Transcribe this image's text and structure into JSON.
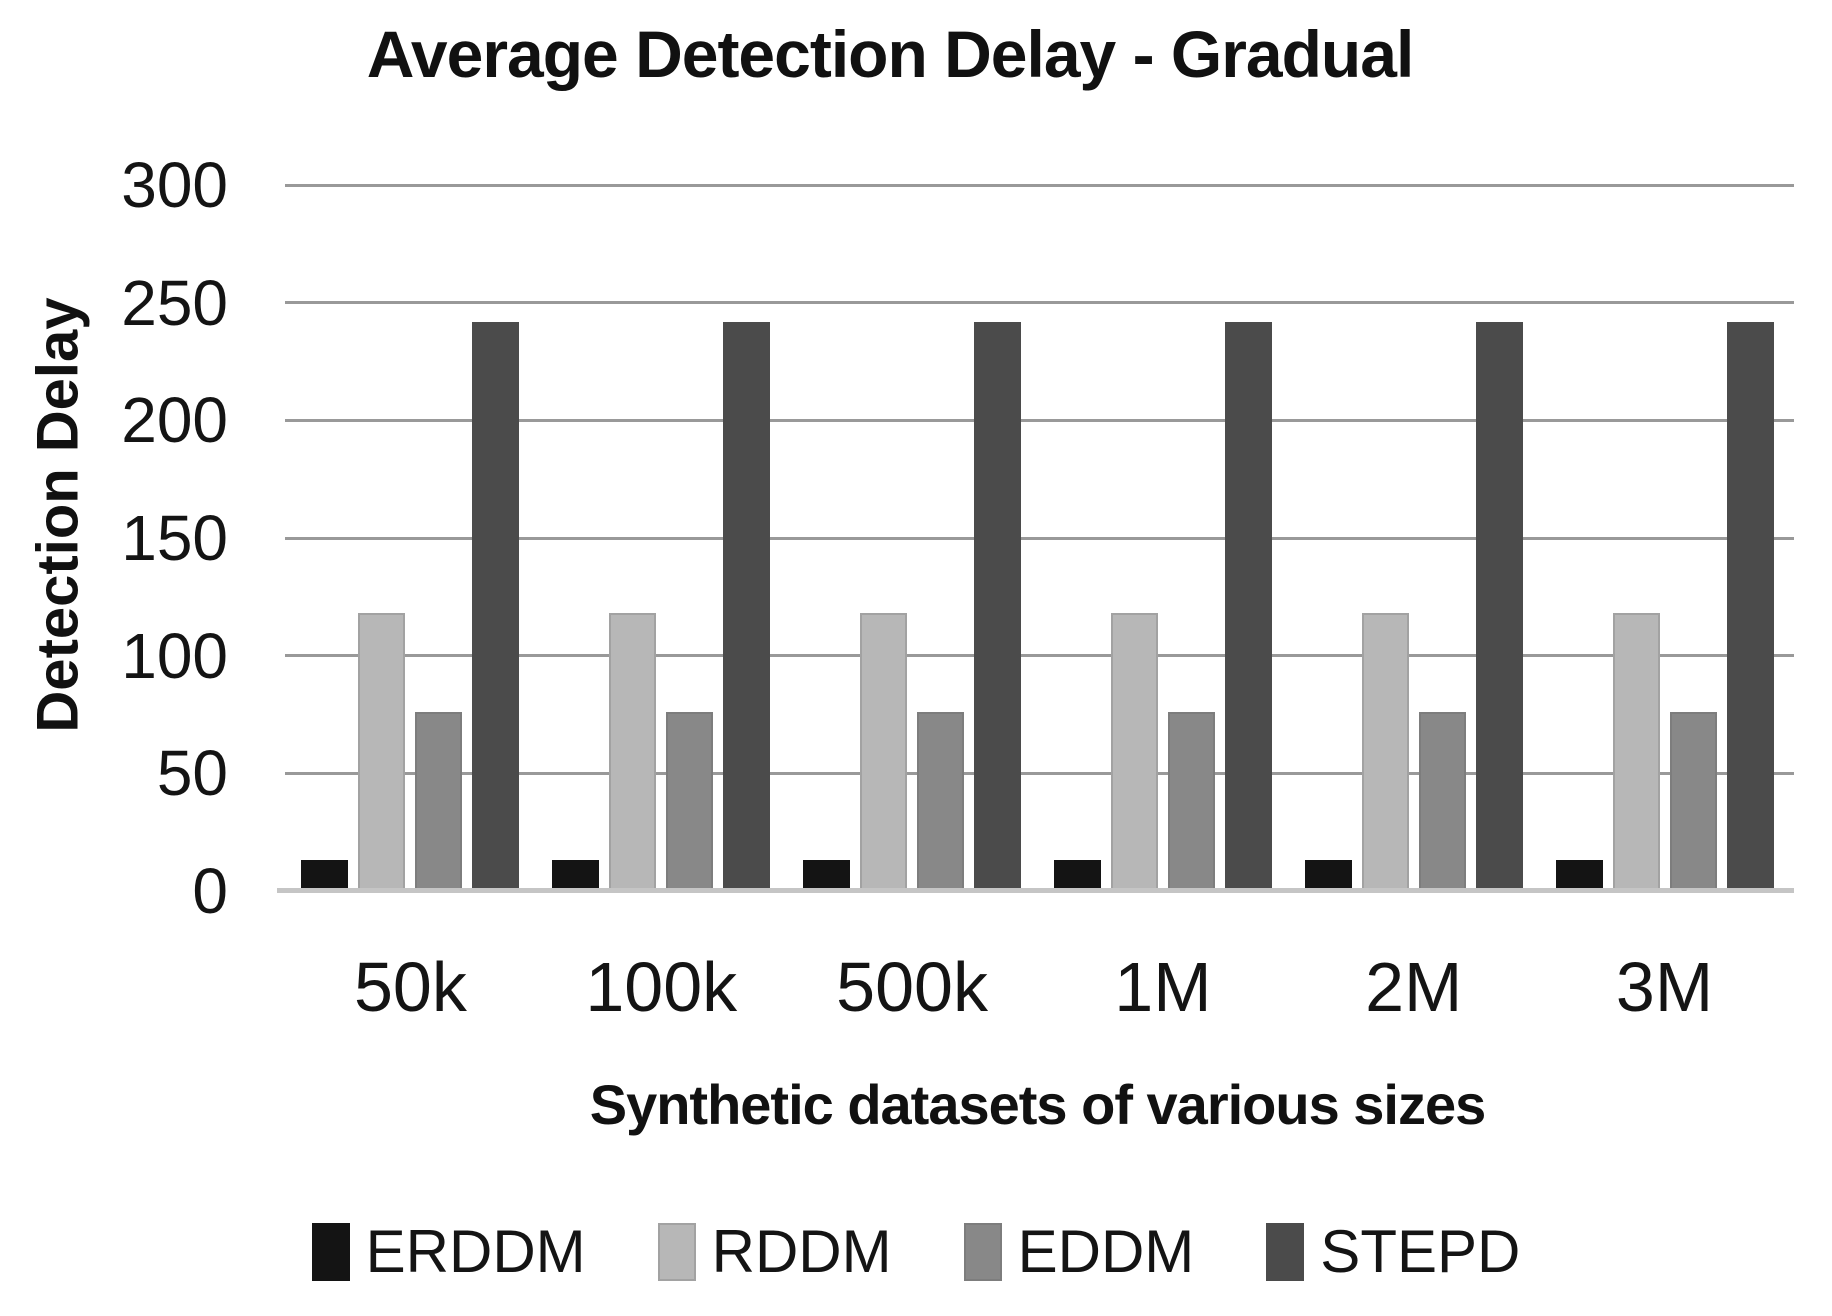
{
  "figure": {
    "background": "#ffffff",
    "text_color": "#141414"
  },
  "chart_data": {
    "type": "bar",
    "title": "Average Detection Delay - Gradual",
    "xlabel": "Synthetic datasets of various sizes",
    "ylabel": "Detection Delay",
    "categories": [
      "50k",
      "100k",
      "500k",
      "1M",
      "2M",
      "3M"
    ],
    "series": [
      {
        "name": "ERDDM",
        "color": "#141414",
        "border_color": "",
        "values": [
          13,
          13,
          13,
          13,
          13,
          13
        ]
      },
      {
        "name": "RDDM",
        "color": "#b7b7b7",
        "border_color": "#a2a2a2",
        "values": [
          118,
          118,
          118,
          118,
          118,
          118
        ]
      },
      {
        "name": "EDDM",
        "color": "#888888",
        "border_color": "#7d7d7d",
        "values": [
          76,
          76,
          76,
          76,
          76,
          76
        ]
      },
      {
        "name": "STEPD",
        "color": "#4b4b4b",
        "border_color": "",
        "values": [
          242,
          242,
          242,
          242,
          242,
          242
        ]
      }
    ],
    "ylim": [
      0,
      300
    ],
    "yticks": [
      0,
      50,
      100,
      150,
      200,
      250,
      300
    ],
    "grid": true,
    "gridline_color": "#999999",
    "axis_line_color": "#c5c5c5",
    "legend_position": "bottom"
  }
}
